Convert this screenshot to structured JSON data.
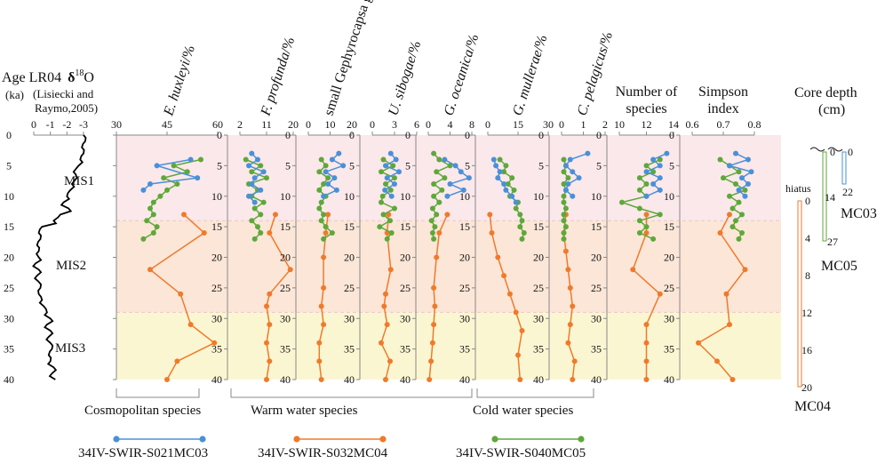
{
  "left_header": {
    "line1": "Age LR04",
    "line1b": "δ",
    "line1c": "18",
    "line1d": "O",
    "line2": "(ka)",
    "line2b": "(Lisiecki and",
    "line3": "Raymo,2005)"
  },
  "mis_labels": [
    "MIS1",
    "MIS2",
    "MIS3"
  ],
  "group_labels": {
    "cosmopolitan": "Cosmopolitan species",
    "warm": "Warm water species",
    "cold": "Cold water species"
  },
  "legend": [
    {
      "name": "34IV-SWIR-S021MC03",
      "color": "#4a90d9"
    },
    {
      "name": "34IV-SWIR-S032MC04",
      "color": "#f07a2a"
    },
    {
      "name": "34IV-SWIR-S040MC05",
      "color": "#5ea83a"
    }
  ],
  "core_depth": {
    "title1": "Core depth",
    "title2": "(cm)",
    "hiatus": "hiatus",
    "cores": [
      {
        "name": "MC03",
        "ticks": [
          "0",
          "22"
        ],
        "color": "#4a90d9"
      },
      {
        "name": "MC05",
        "ticks": [
          "0",
          "14",
          "27"
        ],
        "color": "#5ea83a"
      },
      {
        "name": "MC04",
        "ticks": [
          "0",
          "4",
          "8",
          "12",
          "16",
          "20"
        ],
        "color": "#f07a2a"
      }
    ]
  },
  "chart_data": {
    "type": "line",
    "title": "",
    "y_label": "Age (ka)",
    "y_range": [
      0,
      40
    ],
    "y_ticks": [
      0,
      5,
      10,
      15,
      20,
      25,
      30,
      35,
      40
    ],
    "colors": {
      "MC03": "#4a90d9",
      "MC04": "#f07a2a",
      "MC05": "#5ea83a"
    },
    "mis_bands": [
      {
        "name": "MIS1",
        "from": 0,
        "to": 14,
        "color": "#fbe8ea"
      },
      {
        "name": "MIS2",
        "from": 14,
        "to": 29,
        "color": "#fbe6d8"
      },
      {
        "name": "MIS3",
        "from": 29,
        "to": 40,
        "color": "#fbf6d2"
      }
    ],
    "lr04": {
      "label": "LR04 δ18O",
      "x_ticks": [
        "0",
        "-1",
        "-2",
        "-3"
      ],
      "x_range": [
        0,
        -3
      ],
      "age": [
        0,
        1,
        2,
        3,
        4,
        5,
        6,
        7,
        8,
        9,
        10,
        11,
        12,
        13,
        14,
        15,
        16,
        17,
        18,
        19,
        20,
        21,
        22,
        23,
        24,
        25,
        26,
        27,
        28,
        29,
        30,
        31,
        32,
        33,
        34,
        35,
        36,
        37,
        38,
        39,
        40
      ],
      "values": [
        -3.0,
        -3.1,
        -2.9,
        -3.0,
        -2.8,
        -2.7,
        -2.4,
        -2.6,
        -2.3,
        -2.2,
        -2.0,
        -1.8,
        -2.1,
        -1.6,
        -1.2,
        -0.5,
        -0.3,
        -0.4,
        -0.2,
        -0.3,
        -0.3,
        -0.1,
        -0.3,
        -0.2,
        -0.3,
        -0.4,
        -0.3,
        -0.5,
        -0.6,
        -0.8,
        -1.0,
        -0.8,
        -1.0,
        -0.9,
        -1.0,
        -1.1,
        -0.9,
        -1.0,
        -1.2,
        -1.1,
        -1.3
      ]
    },
    "panels": [
      {
        "key": "ehux",
        "title": "E. huxleyi/%",
        "italic": "E. huxleyi",
        "rest": "/%",
        "xmin": 30,
        "xmax": 60,
        "x_ticks": [
          30,
          45,
          60
        ],
        "group": "cosmopolitan",
        "series": {
          "MC03": {
            "age": [
              4,
              5,
              7,
              8,
              9
            ],
            "values": [
              52,
              42,
              54,
              40,
              38
            ]
          },
          "MC05": {
            "age": [
              4,
              5,
              6,
              7,
              8,
              9,
              10,
              11,
              12,
              13,
              14,
              15,
              16,
              17
            ],
            "values": [
              55,
              47,
              51,
              44,
              48,
              45,
              43,
              41,
              40,
              41,
              39,
              42,
              41,
              38
            ]
          },
          "MC04": {
            "age": [
              13,
              16,
              22,
              26,
              31,
              34,
              37,
              40
            ],
            "values": [
              50,
              56,
              40,
              49,
              52,
              59,
              48,
              45
            ]
          }
        }
      },
      {
        "key": "fprof",
        "title": "F. profunda/%",
        "italic": "F. profunda",
        "rest": "/%",
        "xmin": 2,
        "xmax": 20,
        "x_ticks": [
          2,
          11,
          20
        ],
        "group": "warm",
        "series": {
          "MC03": {
            "age": [
              3,
              4,
              5,
              6,
              7,
              8,
              9,
              10,
              11
            ],
            "values": [
              6,
              8,
              5,
              10,
              7,
              6,
              9,
              5,
              7
            ]
          },
          "MC05": {
            "age": [
              4,
              5,
              6,
              7,
              8,
              9,
              10,
              11,
              12,
              13,
              14,
              15,
              16,
              17
            ],
            "values": [
              4,
              9,
              6,
              11,
              5,
              8,
              6,
              10,
              7,
              9,
              6,
              8,
              9,
              7
            ]
          },
          "MC04": {
            "age": [
              13,
              16,
              22,
              26,
              28,
              31,
              34,
              37,
              40
            ],
            "values": [
              14,
              12,
              19,
              12,
              11,
              12,
              11,
              12,
              11
            ]
          }
        }
      },
      {
        "key": "gephy",
        "title": "small Gephyrocapsa group/%",
        "xmin": 0,
        "xmax": 20,
        "x_ticks": [
          0,
          10,
          20
        ],
        "group": "warm",
        "series": {
          "MC03": {
            "age": [
              3,
              4,
              5,
              6,
              7,
              8,
              9,
              10
            ],
            "values": [
              14,
              11,
              16,
              8,
              12,
              9,
              13,
              7
            ]
          },
          "MC05": {
            "age": [
              4,
              5,
              6,
              7,
              8,
              9,
              10,
              11,
              12,
              13,
              14,
              15,
              16,
              17
            ],
            "values": [
              6,
              8,
              5,
              9,
              7,
              5,
              8,
              6,
              5,
              7,
              6,
              8,
              11,
              7
            ]
          },
          "MC04": {
            "age": [
              13,
              16,
              20,
              25,
              28,
              31,
              34,
              37,
              40
            ],
            "values": [
              9,
              8,
              7,
              7,
              6,
              7,
              5,
              5,
              6
            ]
          }
        }
      },
      {
        "key": "usib",
        "title": "U. sibogae/%",
        "italic": "U. sibogae",
        "rest": "/%",
        "xmin": 0,
        "xmax": 6,
        "x_ticks": [
          0,
          3,
          6
        ],
        "group": "warm",
        "series": {
          "MC03": {
            "age": [
              3,
              4,
              5,
              6,
              7,
              8,
              9,
              10
            ],
            "values": [
              2.5,
              3.2,
              1.8,
              3.6,
              2.0,
              3.0,
              1.7,
              2.6
            ]
          },
          "MC05": {
            "age": [
              4,
              5,
              6,
              7,
              8,
              9,
              10,
              11,
              12,
              13,
              14,
              15,
              16,
              17
            ],
            "values": [
              1.5,
              2.8,
              1.2,
              3.0,
              1.8,
              2.5,
              1.4,
              1.2,
              3.0,
              1.5,
              2.4,
              1.0,
              2.6,
              2.0
            ]
          },
          "MC04": {
            "age": [
              13,
              16,
              22,
              26,
              28,
              31,
              34,
              37,
              40
            ],
            "values": [
              2.2,
              2.0,
              2.5,
              1.8,
              1.6,
              2.0,
              1.2,
              2.4,
              1.8
            ]
          }
        }
      },
      {
        "key": "gocean",
        "title": "G. oceanica/%",
        "italic": "G. oceanica",
        "rest": "/%",
        "xmin": 0,
        "xmax": 8,
        "x_ticks": [
          0,
          4,
          8
        ],
        "group": "warm",
        "series": {
          "MC03": {
            "age": [
              4,
              5,
              6,
              7,
              8,
              9,
              10
            ],
            "values": [
              3.0,
              5.0,
              6.0,
              7.5,
              4.0,
              6.5,
              3.5
            ]
          },
          "MC05": {
            "age": [
              3,
              4,
              5,
              6,
              7,
              8,
              9,
              10,
              11,
              12,
              13,
              14,
              15,
              16,
              17
            ],
            "values": [
              1.0,
              2.0,
              4.0,
              1.5,
              3.0,
              1.0,
              2.5,
              1.0,
              2.0,
              0.8,
              1.5,
              0.6,
              1.2,
              0.8,
              1.0
            ]
          },
          "MC04": {
            "age": [
              13,
              16,
              20,
              25,
              28,
              31,
              34,
              37,
              40
            ],
            "values": [
              3.5,
              2.0,
              1.5,
              1.0,
              1.2,
              1.0,
              0.8,
              0.5,
              0.2
            ]
          }
        }
      },
      {
        "key": "gmull",
        "title": "G. mullerae/%",
        "italic": "G. mullerae",
        "rest": "/%",
        "xmin": 0,
        "xmax": 30,
        "x_ticks": [
          0,
          15,
          30
        ],
        "group": "cold",
        "series": {
          "MC03": {
            "age": [
              4,
              5,
              6,
              7,
              8,
              9,
              10,
              11
            ],
            "values": [
              3,
              4,
              6,
              5,
              8,
              9,
              12,
              14
            ]
          },
          "MC05": {
            "age": [
              4,
              5,
              6,
              7,
              8,
              9,
              10,
              11,
              12,
              13,
              14,
              15,
              16,
              17
            ],
            "values": [
              6,
              9,
              8,
              12,
              10,
              13,
              11,
              15,
              14,
              16,
              17,
              16,
              18,
              17
            ]
          },
          "MC04": {
            "age": [
              13,
              16,
              20,
              23,
              26,
              29,
              32,
              36,
              40
            ],
            "values": [
              1,
              2,
              5,
              8,
              11,
              14,
              17,
              15,
              16
            ]
          }
        }
      },
      {
        "key": "cpel",
        "title": "C. pelagicus/%",
        "italic": "C. pelagicus",
        "rest": "/%",
        "xmin": 0,
        "xmax": 2,
        "x_ticks": [
          0,
          1,
          2
        ],
        "group": "cold",
        "series": {
          "MC03": {
            "age": [
              3,
              4,
              5,
              6,
              7,
              8,
              9,
              10
            ],
            "values": [
              1.2,
              0.4,
              0.2,
              0.5,
              0.8,
              0.3,
              0.2,
              0.5
            ]
          },
          "MC05": {
            "age": [
              4,
              5,
              6,
              7,
              8,
              9,
              10,
              11,
              12,
              13,
              14,
              15,
              16,
              17
            ],
            "values": [
              0.1,
              0.2,
              0.1,
              0.3,
              0.1,
              0.2,
              0.1,
              0.1,
              0.2,
              0.1,
              0.1,
              0.2,
              0.1,
              0.1
            ]
          },
          "MC04": {
            "age": [
              13,
              16,
              19,
              22,
              25,
              28,
              31,
              34,
              37,
              40
            ],
            "values": [
              0.2,
              0.1,
              0.2,
              0.3,
              0.4,
              0.5,
              0.4,
              0.3,
              0.6,
              0.5
            ]
          }
        }
      },
      {
        "key": "nsp",
        "title": "Number of species",
        "line1": "Number of",
        "line2": "species",
        "xmin": 10,
        "xmax": 14,
        "x_ticks": [
          10,
          12,
          14
        ],
        "group": "",
        "series": {
          "MC03": {
            "age": [
              3,
              4,
              5,
              6,
              7,
              8,
              9,
              10
            ],
            "values": [
              13.5,
              12.5,
              13.0,
              12.0,
              13.0,
              12.5,
              13.0,
              12.0
            ]
          },
          "MC05": {
            "age": [
              4,
              5,
              6,
              7,
              8,
              9,
              10,
              11,
              12,
              13,
              14,
              15,
              16,
              17
            ],
            "values": [
              13.0,
              12.0,
              12.5,
              11.5,
              12.0,
              11.5,
              12.0,
              10.2,
              11.5,
              13.0,
              11.5,
              12.0,
              11.5,
              12.5
            ]
          },
          "MC04": {
            "age": [
              13,
              16,
              22,
              26,
              31,
              34,
              37,
              40
            ],
            "values": [
              12.0,
              12.0,
              11.0,
              13.0,
              12.0,
              12.0,
              12.0,
              12.0
            ]
          }
        }
      },
      {
        "key": "simp",
        "title": "Simpson index",
        "line1": "Simpson",
        "line2": "index",
        "xmin": 0.6,
        "xmax": 0.8,
        "x_ticks": [
          "0.6",
          "0.7",
          "0.8"
        ],
        "group": "",
        "series": {
          "MC03": {
            "age": [
              3,
              4,
              5,
              6,
              7,
              8,
              9,
              10
            ],
            "values": [
              0.74,
              0.78,
              0.72,
              0.79,
              0.76,
              0.78,
              0.75,
              0.77
            ]
          },
          "MC05": {
            "age": [
              4,
              5,
              6,
              7,
              8,
              9,
              10,
              11,
              12,
              13,
              14,
              15,
              16,
              17
            ],
            "values": [
              0.69,
              0.72,
              0.75,
              0.7,
              0.74,
              0.77,
              0.72,
              0.75,
              0.73,
              0.76,
              0.74,
              0.73,
              0.76,
              0.75
            ]
          },
          "MC04": {
            "age": [
              13,
              16,
              22,
              26,
              31,
              34,
              37,
              40
            ],
            "values": [
              0.72,
              0.69,
              0.77,
              0.71,
              0.72,
              0.62,
              0.68,
              0.73
            ]
          }
        }
      }
    ]
  }
}
